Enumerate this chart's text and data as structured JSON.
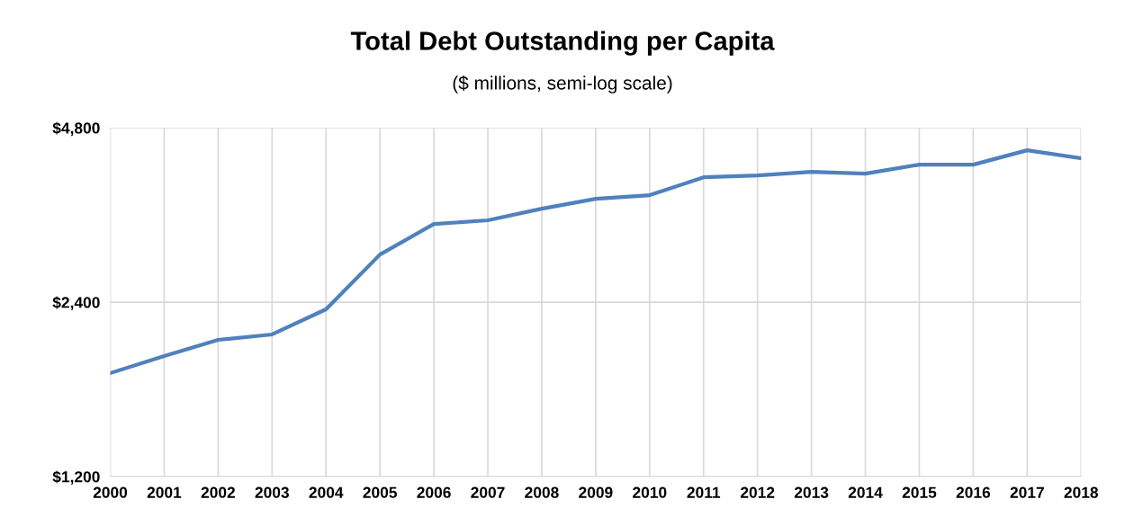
{
  "chart_data": {
    "type": "line",
    "title": "Total Debt Outstanding per Capita",
    "subtitle": "($ millions, semi-log scale)",
    "categories": [
      "2000",
      "2001",
      "2002",
      "2003",
      "2004",
      "2005",
      "2006",
      "2007",
      "2008",
      "2009",
      "2010",
      "2011",
      "2012",
      "2013",
      "2014",
      "2015",
      "2016",
      "2017",
      "2018"
    ],
    "series": [
      {
        "color": "#4f81bd",
        "values": [
          1810,
          1937,
          2066,
          2111,
          2333,
          2900,
          3275,
          3323,
          3480,
          3619,
          3672,
          3943,
          3973,
          4030,
          4001,
          4146,
          4146,
          4390,
          4252
        ]
      }
    ],
    "log": "y",
    "ylim": [
      1200,
      4800
    ],
    "yticks": [
      {
        "value": 1200,
        "label": "$1,200"
      },
      {
        "value": 2400,
        "label": "$2,400"
      },
      {
        "value": 4800,
        "label": "$4,800"
      }
    ],
    "grid": true,
    "marker": "none",
    "line_style": "solid"
  }
}
